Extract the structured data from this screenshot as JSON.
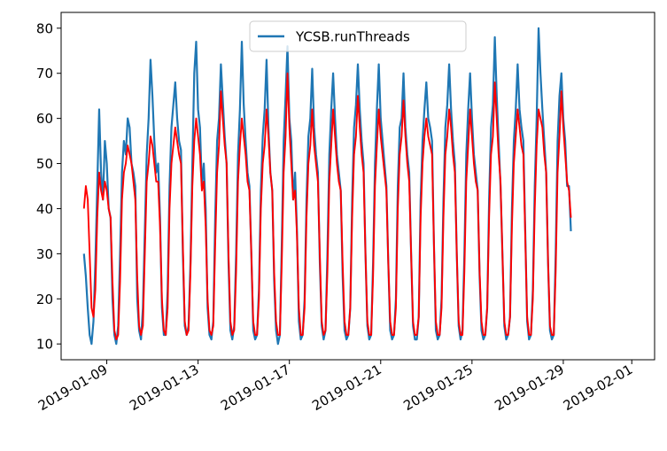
{
  "chart_data": {
    "type": "line",
    "title": "",
    "xlabel": "",
    "ylabel": "",
    "x_range": [
      "2019-01-07T00:00",
      "2019-02-02T00:00"
    ],
    "ylim": [
      6.5,
      83.5
    ],
    "grid": false,
    "legend_placement": "top-center",
    "x_ticks": [
      "2019-01-09",
      "2019-01-13",
      "2019-01-17",
      "2019-01-21",
      "2019-01-25",
      "2019-01-29",
      "2019-02-01"
    ],
    "y_ticks": [
      10,
      20,
      30,
      40,
      50,
      60,
      70,
      80
    ],
    "series": [
      {
        "name": "YCSB.runThreads",
        "color": "#1f77b4",
        "start": "2019-01-08T00:00",
        "end": "2019-02-01T00:00",
        "x_step_hours": 2,
        "values": [
          30,
          25,
          18,
          12,
          10,
          15,
          28,
          45,
          62,
          48,
          42,
          55,
          50,
          40,
          38,
          20,
          12,
          10,
          14,
          30,
          48,
          55,
          52,
          60,
          58,
          50,
          48,
          45,
          20,
          13,
          11,
          18,
          35,
          52,
          60,
          73,
          65,
          55,
          48,
          50,
          38,
          18,
          12,
          12,
          22,
          45,
          58,
          63,
          68,
          60,
          55,
          53,
          30,
          14,
          12,
          14,
          28,
          50,
          70,
          77,
          62,
          58,
          45,
          50,
          40,
          18,
          12,
          11,
          15,
          38,
          55,
          60,
          72,
          64,
          56,
          50,
          28,
          13,
          11,
          14,
          30,
          52,
          62,
          77,
          63,
          55,
          48,
          45,
          30,
          13,
          11,
          12,
          22,
          44,
          56,
          62,
          73,
          58,
          48,
          44,
          24,
          13,
          10,
          12,
          32,
          55,
          65,
          76,
          60,
          55,
          42,
          48,
          35,
          15,
          11,
          12,
          20,
          42,
          56,
          60,
          71,
          58,
          52,
          48,
          28,
          14,
          11,
          13,
          30,
          52,
          62,
          70,
          60,
          52,
          48,
          44,
          25,
          13,
          11,
          12,
          18,
          42,
          58,
          63,
          72,
          62,
          55,
          50,
          30,
          14,
          11,
          12,
          28,
          50,
          62,
          72,
          60,
          55,
          50,
          45,
          28,
          13,
          11,
          12,
          20,
          45,
          58,
          60,
          70,
          58,
          52,
          48,
          30,
          14,
          11,
          11,
          16,
          42,
          55,
          62,
          68,
          60,
          58,
          55,
          32,
          13,
          11,
          12,
          20,
          42,
          58,
          63,
          72,
          62,
          55,
          50,
          30,
          14,
          11,
          13,
          30,
          52,
          62,
          70,
          60,
          52,
          48,
          44,
          25,
          13,
          11,
          12,
          18,
          42,
          58,
          63,
          78,
          65,
          55,
          45,
          30,
          14,
          11,
          12,
          16,
          40,
          55,
          62,
          72,
          62,
          58,
          55,
          35,
          15,
          11,
          12,
          22,
          45,
          60,
          80,
          70,
          62,
          55,
          48,
          28,
          13,
          11,
          12,
          30,
          55,
          65,
          70,
          60,
          55,
          45,
          45,
          35
        ]
      },
      {
        "name": "",
        "color": "#ff0000",
        "start": "2019-01-08T00:00",
        "end": "2019-02-01T00:00",
        "x_step_hours": 2,
        "values": [
          40,
          45,
          42,
          30,
          18,
          16,
          22,
          38,
          48,
          44,
          42,
          46,
          44,
          40,
          38,
          24,
          13,
          11,
          12,
          24,
          42,
          48,
          50,
          54,
          52,
          50,
          46,
          42,
          25,
          14,
          12,
          14,
          30,
          46,
          50,
          56,
          54,
          50,
          46,
          46,
          36,
          20,
          13,
          12,
          18,
          40,
          50,
          54,
          58,
          55,
          52,
          50,
          32,
          15,
          12,
          13,
          26,
          45,
          55,
          60,
          56,
          52,
          44,
          46,
          36,
          20,
          13,
          12,
          14,
          32,
          48,
          54,
          66,
          60,
          54,
          50,
          30,
          15,
          12,
          13,
          26,
          46,
          54,
          60,
          56,
          52,
          46,
          44,
          30,
          15,
          12,
          12,
          20,
          40,
          50,
          54,
          62,
          56,
          48,
          44,
          26,
          15,
          12,
          12,
          28,
          48,
          56,
          70,
          58,
          50,
          42,
          44,
          34,
          18,
          12,
          12,
          18,
          38,
          50,
          54,
          62,
          54,
          50,
          46,
          30,
          15,
          12,
          13,
          26,
          46,
          54,
          62,
          56,
          50,
          46,
          44,
          28,
          15,
          12,
          12,
          18,
          38,
          52,
          56,
          65,
          58,
          52,
          48,
          30,
          15,
          12,
          12,
          25,
          45,
          54,
          62,
          56,
          52,
          48,
          44,
          28,
          15,
          12,
          12,
          18,
          40,
          52,
          56,
          64,
          56,
          50,
          46,
          30,
          15,
          12,
          12,
          16,
          38,
          50,
          56,
          60,
          56,
          54,
          52,
          32,
          15,
          12,
          12,
          18,
          38,
          52,
          56,
          62,
          58,
          52,
          48,
          30,
          15,
          12,
          12,
          26,
          46,
          54,
          62,
          56,
          50,
          46,
          44,
          26,
          15,
          12,
          12,
          18,
          38,
          52,
          56,
          68,
          60,
          52,
          46,
          30,
          15,
          12,
          12,
          16,
          36,
          50,
          56,
          62,
          58,
          54,
          52,
          34,
          16,
          12,
          12,
          20,
          40,
          54,
          62,
          60,
          58,
          52,
          48,
          28,
          14,
          12,
          12,
          26,
          48,
          56,
          66,
          58,
          52,
          46,
          44,
          38
        ]
      }
    ]
  }
}
